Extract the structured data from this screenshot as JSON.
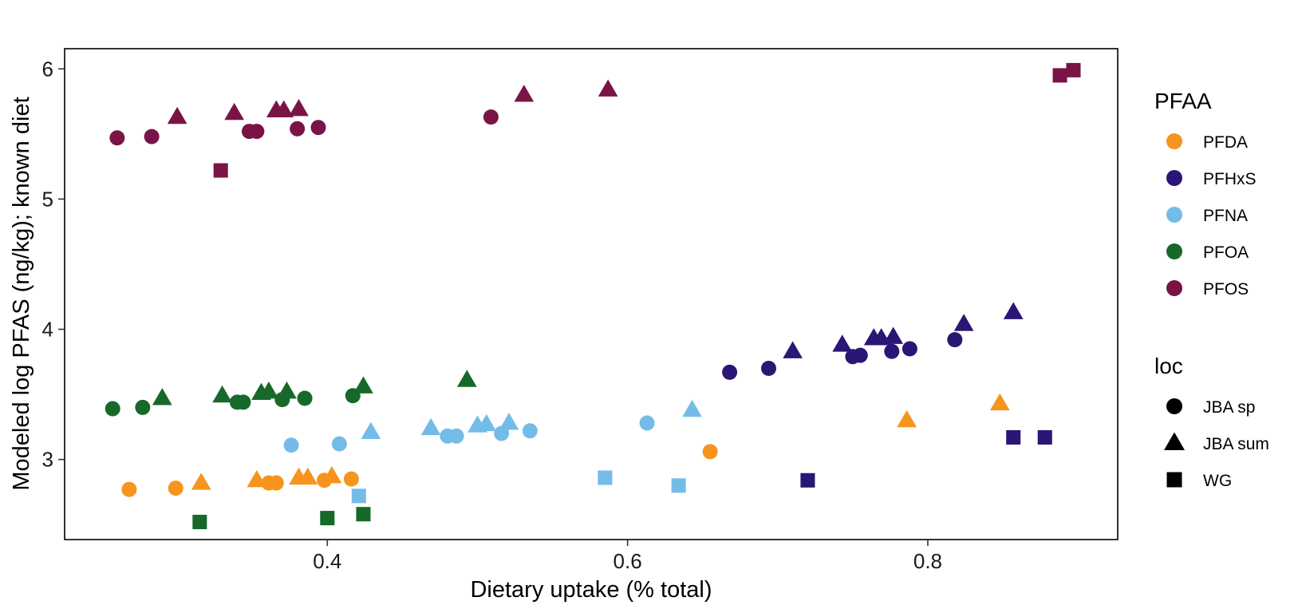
{
  "chart_data": {
    "type": "scatter",
    "title": "",
    "xlabel": "Dietary uptake (% total)",
    "ylabel": "Modeled log PFAS (ng/kg); known diet",
    "xlim": [
      0.225,
      0.9265
    ],
    "ylim": [
      2.385,
      6.155
    ],
    "xticks": [
      {
        "value": 0.4,
        "label": "0.4"
      },
      {
        "value": 0.6,
        "label": "0.6"
      },
      {
        "value": 0.8,
        "label": "0.8"
      }
    ],
    "yticks": [
      {
        "value": 3,
        "label": "3"
      },
      {
        "value": 4,
        "label": "4"
      },
      {
        "value": 5,
        "label": "5"
      },
      {
        "value": 6,
        "label": "6"
      }
    ],
    "grid": false,
    "legend_placement": "right",
    "color_legend": {
      "title": "PFAA",
      "items": [
        {
          "name": "PFDA",
          "color": "#F7941D"
        },
        {
          "name": "PFHxS",
          "color": "#2A1674"
        },
        {
          "name": "PFNA",
          "color": "#74BCE8"
        },
        {
          "name": "PFOA",
          "color": "#17692A"
        },
        {
          "name": "PFOS",
          "color": "#7A1446"
        }
      ]
    },
    "shape_legend": {
      "title": "loc",
      "items": [
        {
          "name": "JBA sp",
          "shape": "circle"
        },
        {
          "name": "JBA sum",
          "shape": "triangle"
        },
        {
          "name": "WG",
          "shape": "square"
        }
      ]
    },
    "points": [
      {
        "group": "PFDA",
        "loc": "JBA sp",
        "x": 0.268,
        "y": 2.77
      },
      {
        "group": "PFDA",
        "loc": "JBA sp",
        "x": 0.299,
        "y": 2.78
      },
      {
        "group": "PFDA",
        "loc": "JBA sp",
        "x": 0.361,
        "y": 2.82
      },
      {
        "group": "PFDA",
        "loc": "JBA sp",
        "x": 0.366,
        "y": 2.82
      },
      {
        "group": "PFDA",
        "loc": "JBA sp",
        "x": 0.398,
        "y": 2.84
      },
      {
        "group": "PFDA",
        "loc": "JBA sp",
        "x": 0.416,
        "y": 2.85
      },
      {
        "group": "PFDA",
        "loc": "JBA sp",
        "x": 0.655,
        "y": 3.06
      },
      {
        "group": "PFDA",
        "loc": "JBA sum",
        "x": 0.316,
        "y": 2.82
      },
      {
        "group": "PFDA",
        "loc": "JBA sum",
        "x": 0.353,
        "y": 2.84
      },
      {
        "group": "PFDA",
        "loc": "JBA sum",
        "x": 0.381,
        "y": 2.86
      },
      {
        "group": "PFDA",
        "loc": "JBA sum",
        "x": 0.387,
        "y": 2.86
      },
      {
        "group": "PFDA",
        "loc": "JBA sum",
        "x": 0.403,
        "y": 2.87
      },
      {
        "group": "PFDA",
        "loc": "JBA sum",
        "x": 0.786,
        "y": 3.3
      },
      {
        "group": "PFDA",
        "loc": "JBA sum",
        "x": 0.848,
        "y": 3.43
      },
      {
        "group": "PFHxS",
        "loc": "JBA sp",
        "x": 0.668,
        "y": 3.67
      },
      {
        "group": "PFHxS",
        "loc": "JBA sp",
        "x": 0.694,
        "y": 3.7
      },
      {
        "group": "PFHxS",
        "loc": "JBA sp",
        "x": 0.75,
        "y": 3.79
      },
      {
        "group": "PFHxS",
        "loc": "JBA sp",
        "x": 0.755,
        "y": 3.8
      },
      {
        "group": "PFHxS",
        "loc": "JBA sp",
        "x": 0.776,
        "y": 3.83
      },
      {
        "group": "PFHxS",
        "loc": "JBA sp",
        "x": 0.788,
        "y": 3.85
      },
      {
        "group": "PFHxS",
        "loc": "JBA sp",
        "x": 0.818,
        "y": 3.92
      },
      {
        "group": "PFHxS",
        "loc": "JBA sum",
        "x": 0.71,
        "y": 3.83
      },
      {
        "group": "PFHxS",
        "loc": "JBA sum",
        "x": 0.743,
        "y": 3.88
      },
      {
        "group": "PFHxS",
        "loc": "JBA sum",
        "x": 0.764,
        "y": 3.93
      },
      {
        "group": "PFHxS",
        "loc": "JBA sum",
        "x": 0.769,
        "y": 3.93
      },
      {
        "group": "PFHxS",
        "loc": "JBA sum",
        "x": 0.777,
        "y": 3.94
      },
      {
        "group": "PFHxS",
        "loc": "JBA sum",
        "x": 0.824,
        "y": 4.04
      },
      {
        "group": "PFHxS",
        "loc": "JBA sum",
        "x": 0.857,
        "y": 4.13
      },
      {
        "group": "PFHxS",
        "loc": "WG",
        "x": 0.72,
        "y": 2.84
      },
      {
        "group": "PFHxS",
        "loc": "WG",
        "x": 0.857,
        "y": 3.17
      },
      {
        "group": "PFHxS",
        "loc": "WG",
        "x": 0.878,
        "y": 3.17
      },
      {
        "group": "PFNA",
        "loc": "JBA sp",
        "x": 0.376,
        "y": 3.11
      },
      {
        "group": "PFNA",
        "loc": "JBA sp",
        "x": 0.408,
        "y": 3.12
      },
      {
        "group": "PFNA",
        "loc": "JBA sp",
        "x": 0.48,
        "y": 3.18
      },
      {
        "group": "PFNA",
        "loc": "JBA sp",
        "x": 0.486,
        "y": 3.18
      },
      {
        "group": "PFNA",
        "loc": "JBA sp",
        "x": 0.516,
        "y": 3.2
      },
      {
        "group": "PFNA",
        "loc": "JBA sp",
        "x": 0.535,
        "y": 3.22
      },
      {
        "group": "PFNA",
        "loc": "JBA sp",
        "x": 0.613,
        "y": 3.28
      },
      {
        "group": "PFNA",
        "loc": "JBA sum",
        "x": 0.429,
        "y": 3.21
      },
      {
        "group": "PFNA",
        "loc": "JBA sum",
        "x": 0.469,
        "y": 3.24
      },
      {
        "group": "PFNA",
        "loc": "JBA sum",
        "x": 0.5,
        "y": 3.26
      },
      {
        "group": "PFNA",
        "loc": "JBA sum",
        "x": 0.506,
        "y": 3.27
      },
      {
        "group": "PFNA",
        "loc": "JBA sum",
        "x": 0.521,
        "y": 3.28
      },
      {
        "group": "PFNA",
        "loc": "JBA sum",
        "x": 0.643,
        "y": 3.38
      },
      {
        "group": "PFNA",
        "loc": "WG",
        "x": 0.421,
        "y": 2.72
      },
      {
        "group": "PFNA",
        "loc": "WG",
        "x": 0.585,
        "y": 2.86
      },
      {
        "group": "PFNA",
        "loc": "WG",
        "x": 0.634,
        "y": 2.8
      },
      {
        "group": "PFOA",
        "loc": "JBA sp",
        "x": 0.257,
        "y": 3.39
      },
      {
        "group": "PFOA",
        "loc": "JBA sp",
        "x": 0.277,
        "y": 3.4
      },
      {
        "group": "PFOA",
        "loc": "JBA sp",
        "x": 0.34,
        "y": 3.44
      },
      {
        "group": "PFOA",
        "loc": "JBA sp",
        "x": 0.344,
        "y": 3.44
      },
      {
        "group": "PFOA",
        "loc": "JBA sp",
        "x": 0.37,
        "y": 3.46
      },
      {
        "group": "PFOA",
        "loc": "JBA sp",
        "x": 0.385,
        "y": 3.47
      },
      {
        "group": "PFOA",
        "loc": "JBA sp",
        "x": 0.417,
        "y": 3.49
      },
      {
        "group": "PFOA",
        "loc": "JBA sum",
        "x": 0.29,
        "y": 3.47
      },
      {
        "group": "PFOA",
        "loc": "JBA sum",
        "x": 0.33,
        "y": 3.49
      },
      {
        "group": "PFOA",
        "loc": "JBA sum",
        "x": 0.356,
        "y": 3.51
      },
      {
        "group": "PFOA",
        "loc": "JBA sum",
        "x": 0.361,
        "y": 3.52
      },
      {
        "group": "PFOA",
        "loc": "JBA sum",
        "x": 0.373,
        "y": 3.52
      },
      {
        "group": "PFOA",
        "loc": "JBA sum",
        "x": 0.424,
        "y": 3.56
      },
      {
        "group": "PFOA",
        "loc": "JBA sum",
        "x": 0.493,
        "y": 3.61
      },
      {
        "group": "PFOA",
        "loc": "WG",
        "x": 0.315,
        "y": 2.52
      },
      {
        "group": "PFOA",
        "loc": "WG",
        "x": 0.4,
        "y": 2.55
      },
      {
        "group": "PFOA",
        "loc": "WG",
        "x": 0.424,
        "y": 2.58
      },
      {
        "group": "PFOS",
        "loc": "JBA sp",
        "x": 0.26,
        "y": 5.47
      },
      {
        "group": "PFOS",
        "loc": "JBA sp",
        "x": 0.283,
        "y": 5.48
      },
      {
        "group": "PFOS",
        "loc": "JBA sp",
        "x": 0.348,
        "y": 5.52
      },
      {
        "group": "PFOS",
        "loc": "JBA sp",
        "x": 0.353,
        "y": 5.52
      },
      {
        "group": "PFOS",
        "loc": "JBA sp",
        "x": 0.38,
        "y": 5.54
      },
      {
        "group": "PFOS",
        "loc": "JBA sp",
        "x": 0.394,
        "y": 5.55
      },
      {
        "group": "PFOS",
        "loc": "JBA sp",
        "x": 0.509,
        "y": 5.63
      },
      {
        "group": "PFOS",
        "loc": "JBA sum",
        "x": 0.3,
        "y": 5.63
      },
      {
        "group": "PFOS",
        "loc": "JBA sum",
        "x": 0.338,
        "y": 5.66
      },
      {
        "group": "PFOS",
        "loc": "JBA sum",
        "x": 0.366,
        "y": 5.68
      },
      {
        "group": "PFOS",
        "loc": "JBA sum",
        "x": 0.371,
        "y": 5.68
      },
      {
        "group": "PFOS",
        "loc": "JBA sum",
        "x": 0.381,
        "y": 5.69
      },
      {
        "group": "PFOS",
        "loc": "JBA sum",
        "x": 0.531,
        "y": 5.8
      },
      {
        "group": "PFOS",
        "loc": "JBA sum",
        "x": 0.587,
        "y": 5.84
      },
      {
        "group": "PFOS",
        "loc": "WG",
        "x": 0.329,
        "y": 5.22
      },
      {
        "group": "PFOS",
        "loc": "WG",
        "x": 0.888,
        "y": 5.95
      },
      {
        "group": "PFOS",
        "loc": "WG",
        "x": 0.897,
        "y": 5.99
      }
    ]
  }
}
